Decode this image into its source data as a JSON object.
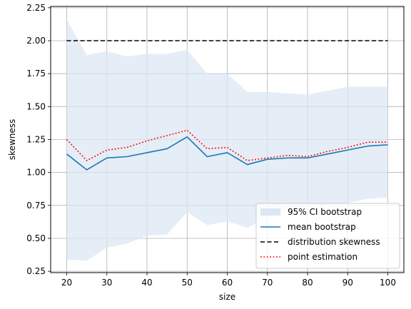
{
  "chart_data": {
    "type": "line",
    "title": "",
    "xlabel": "size",
    "ylabel": "skewness",
    "xlim": [
      16,
      104
    ],
    "ylim": [
      0.24,
      2.26
    ],
    "grid": true,
    "legend_placement": "lower-right",
    "x": [
      20,
      25,
      30,
      35,
      40,
      45,
      50,
      55,
      60,
      65,
      70,
      75,
      80,
      85,
      90,
      95,
      100
    ],
    "xticks": [
      20,
      30,
      40,
      50,
      60,
      70,
      80,
      90,
      100
    ],
    "xtick_labels": [
      "20",
      "30",
      "40",
      "50",
      "60",
      "70",
      "80",
      "90",
      "100"
    ],
    "yticks": [
      0.25,
      0.5,
      0.75,
      1.0,
      1.25,
      1.5,
      1.75,
      2.0,
      2.25
    ],
    "ytick_labels": [
      "0.25",
      "0.50",
      "0.75",
      "1.00",
      "1.25",
      "1.50",
      "1.75",
      "2.00",
      "2.25"
    ],
    "ci_band": {
      "name": "95% CI bootstrap",
      "color": "#dce7f3",
      "lower": [
        0.34,
        0.33,
        0.43,
        0.46,
        0.52,
        0.53,
        0.7,
        0.6,
        0.63,
        0.58,
        0.66,
        0.71,
        0.74,
        0.76,
        0.77,
        0.8,
        0.81
      ],
      "upper": [
        2.16,
        1.89,
        1.92,
        1.88,
        1.9,
        1.9,
        1.93,
        1.75,
        1.75,
        1.61,
        1.61,
        1.6,
        1.59,
        1.62,
        1.65,
        1.65,
        1.65
      ]
    },
    "series": [
      {
        "name": "mean bootstrap",
        "color": "#1f77b4",
        "style": "solid",
        "values": [
          1.14,
          1.02,
          1.11,
          1.12,
          1.15,
          1.18,
          1.27,
          1.12,
          1.15,
          1.06,
          1.1,
          1.11,
          1.11,
          1.14,
          1.17,
          1.2,
          1.21
        ]
      },
      {
        "name": "distribution skewness",
        "color": "#000000",
        "style": "dashed",
        "values": [
          2.0,
          2.0,
          2.0,
          2.0,
          2.0,
          2.0,
          2.0,
          2.0,
          2.0,
          2.0,
          2.0,
          2.0,
          2.0,
          2.0,
          2.0,
          2.0,
          2.0
        ]
      },
      {
        "name": "point estimation",
        "color": "#ff0000",
        "style": "dotted",
        "values": [
          1.25,
          1.09,
          1.17,
          1.19,
          1.24,
          1.28,
          1.32,
          1.18,
          1.19,
          1.09,
          1.11,
          1.13,
          1.12,
          1.16,
          1.19,
          1.23,
          1.23
        ]
      }
    ]
  }
}
